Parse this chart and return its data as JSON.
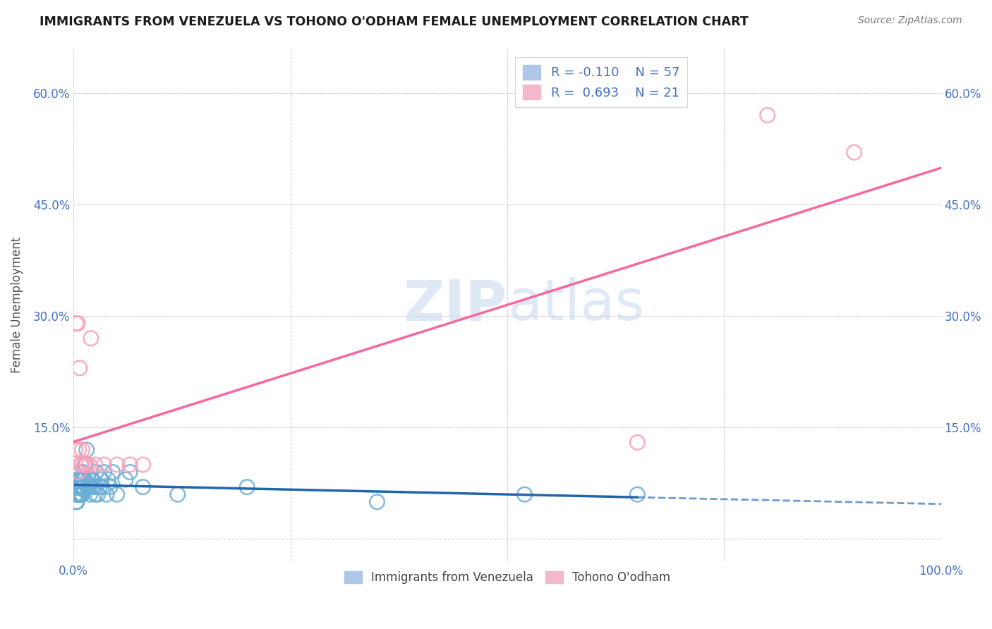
{
  "title": "IMMIGRANTS FROM VENEZUELA VS TOHONO O'ODHAM FEMALE UNEMPLOYMENT CORRELATION CHART",
  "source": "Source: ZipAtlas.com",
  "ylabel": "Female Unemployment",
  "xlim": [
    0.0,
    1.0
  ],
  "ylim": [
    -0.03,
    0.66
  ],
  "blue_scatter_color": "#6baed6",
  "pink_scatter_color": "#fa9fb5",
  "blue_line_color": "#2166ac",
  "pink_line_color": "#f768a1",
  "blue_r": "-0.110",
  "blue_n": "57",
  "pink_r": "0.693",
  "pink_n": "21",
  "watermark_zip": "ZIP",
  "watermark_atlas": "atlas",
  "background_color": "#ffffff",
  "blue_x": [
    0.002,
    0.003,
    0.003,
    0.004,
    0.004,
    0.005,
    0.005,
    0.005,
    0.006,
    0.006,
    0.006,
    0.007,
    0.007,
    0.007,
    0.008,
    0.008,
    0.008,
    0.009,
    0.009,
    0.01,
    0.01,
    0.01,
    0.011,
    0.011,
    0.012,
    0.012,
    0.013,
    0.014,
    0.015,
    0.016,
    0.017,
    0.018,
    0.019,
    0.02,
    0.021,
    0.022,
    0.024,
    0.025,
    0.026,
    0.028,
    0.03,
    0.032,
    0.033,
    0.035,
    0.038,
    0.04,
    0.042,
    0.045,
    0.05,
    0.06,
    0.065,
    0.08,
    0.12,
    0.2,
    0.35,
    0.52,
    0.65
  ],
  "blue_y": [
    0.06,
    0.05,
    0.07,
    0.06,
    0.05,
    0.07,
    0.08,
    0.06,
    0.07,
    0.06,
    0.08,
    0.07,
    0.06,
    0.09,
    0.07,
    0.06,
    0.08,
    0.06,
    0.07,
    0.07,
    0.06,
    0.08,
    0.07,
    0.09,
    0.07,
    0.08,
    0.08,
    0.1,
    0.12,
    0.07,
    0.08,
    0.07,
    0.06,
    0.08,
    0.07,
    0.08,
    0.07,
    0.06,
    0.09,
    0.06,
    0.07,
    0.08,
    0.07,
    0.09,
    0.06,
    0.08,
    0.07,
    0.09,
    0.06,
    0.08,
    0.09,
    0.07,
    0.06,
    0.07,
    0.05,
    0.06,
    0.06
  ],
  "pink_x": [
    0.002,
    0.003,
    0.005,
    0.006,
    0.006,
    0.007,
    0.008,
    0.009,
    0.01,
    0.012,
    0.015,
    0.018,
    0.02,
    0.025,
    0.035,
    0.05,
    0.065,
    0.08,
    0.65,
    0.8,
    0.9
  ],
  "pink_y": [
    0.12,
    0.29,
    0.29,
    0.09,
    0.12,
    0.23,
    0.1,
    0.1,
    0.12,
    0.1,
    0.1,
    0.1,
    0.27,
    0.1,
    0.1,
    0.1,
    0.1,
    0.1,
    0.13,
    0.57,
    0.52
  ]
}
